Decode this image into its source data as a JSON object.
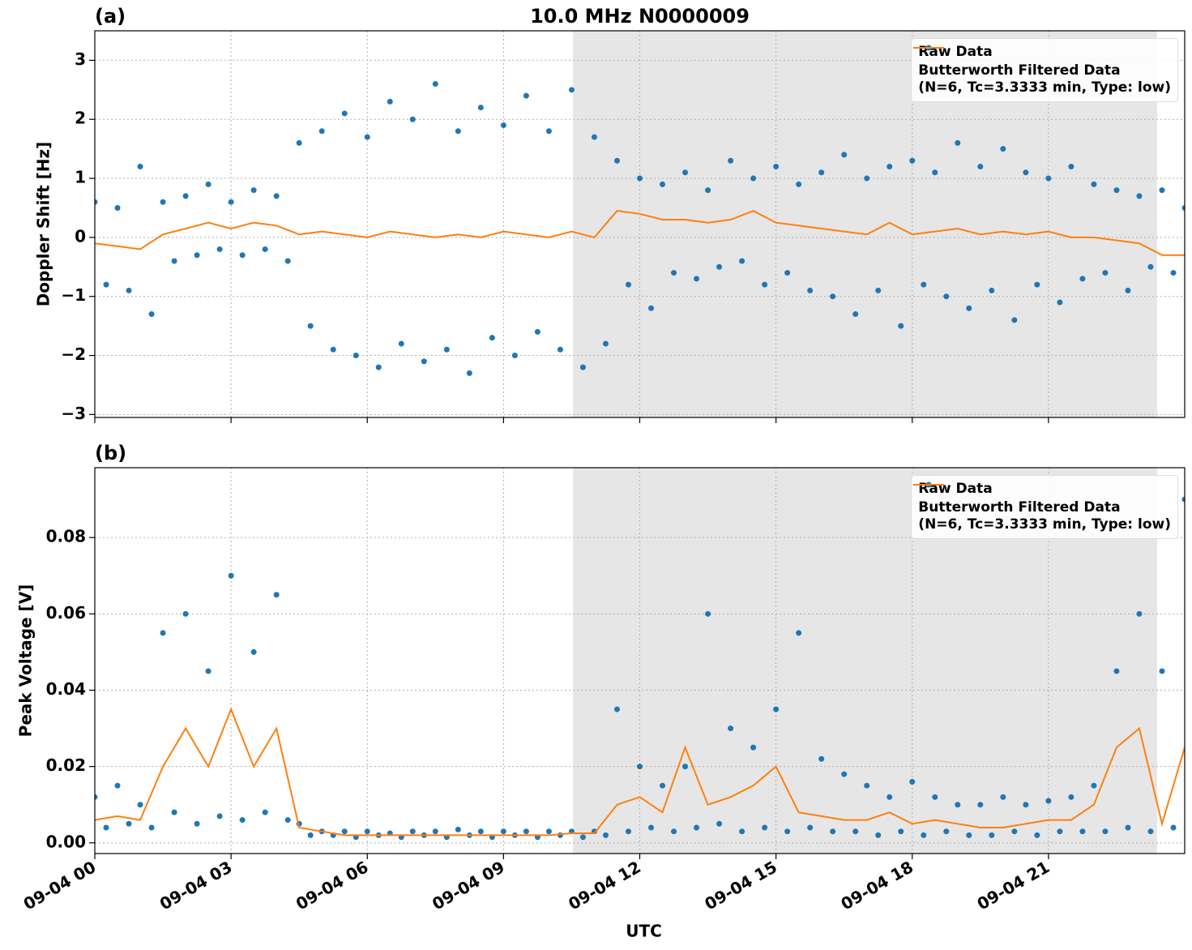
{
  "chart_data": [
    {
      "type": "scatter",
      "panel_label": "(a)",
      "title": "10.0 MHz N0000009",
      "ylabel": "Doppler Shift [Hz]",
      "xlim": [
        0,
        24
      ],
      "ylim": [
        -3.05,
        3.5
      ],
      "xticks": [
        0,
        3,
        6,
        9,
        12,
        15,
        18,
        21
      ],
      "xtick_labels": false,
      "yticks": [
        {
          "value": -3,
          "label": "−3"
        },
        {
          "value": -2,
          "label": "−2"
        },
        {
          "value": -1,
          "label": "−1"
        },
        0,
        1,
        2,
        3
      ],
      "grid": true,
      "shaded_span": [
        10.53,
        23.39
      ],
      "legend": "upper right",
      "series": [
        {
          "name": "Raw Data",
          "type": "scatter",
          "color": "#1f77b4",
          "x": [
            0,
            0.25,
            0.5,
            0.75,
            1,
            1.25,
            1.5,
            1.75,
            2,
            2.25,
            2.5,
            2.75,
            3,
            3.25,
            3.5,
            3.75,
            4,
            4.25,
            4.5,
            4.75,
            5,
            5.25,
            5.5,
            5.75,
            6,
            6.25,
            6.5,
            6.75,
            7,
            7.25,
            7.5,
            7.75,
            8,
            8.25,
            8.5,
            8.75,
            9,
            9.25,
            9.5,
            9.75,
            10,
            10.25,
            10.5,
            10.75,
            11,
            11.25,
            11.5,
            11.75,
            12,
            12.25,
            12.5,
            12.75,
            13,
            13.25,
            13.5,
            13.75,
            14,
            14.25,
            14.5,
            14.75,
            15,
            15.25,
            15.5,
            15.75,
            16,
            16.25,
            16.5,
            16.75,
            17,
            17.25,
            17.5,
            17.75,
            18,
            18.25,
            18.5,
            18.75,
            19,
            19.25,
            19.5,
            19.75,
            20,
            20.25,
            20.5,
            20.75,
            21,
            21.25,
            21.5,
            21.75,
            22,
            22.25,
            22.5,
            22.75,
            23,
            23.25,
            23.5,
            23.75,
            24
          ],
          "values": [
            0.6,
            -0.8,
            0.5,
            -0.9,
            1.2,
            -1.3,
            0.6,
            -0.4,
            0.7,
            -0.3,
            0.9,
            -0.2,
            0.6,
            -0.3,
            0.8,
            -0.2,
            0.7,
            -0.4,
            1.6,
            -1.5,
            1.8,
            -1.9,
            2.1,
            -2.0,
            1.7,
            -2.2,
            2.3,
            -1.8,
            2.0,
            -2.1,
            2.6,
            -1.9,
            1.8,
            -2.3,
            2.2,
            -1.7,
            1.9,
            -2.0,
            2.4,
            -1.6,
            1.8,
            -1.9,
            2.5,
            -2.2,
            1.7,
            -1.8,
            1.3,
            -0.8,
            1.0,
            -1.2,
            0.9,
            -0.6,
            1.1,
            -0.7,
            0.8,
            -0.5,
            1.3,
            -0.4,
            1.0,
            -0.8,
            1.2,
            -0.6,
            0.9,
            -0.9,
            1.1,
            -1.0,
            1.4,
            -1.3,
            1.0,
            -0.9,
            1.2,
            -1.5,
            1.3,
            -0.8,
            1.1,
            -1.0,
            1.6,
            -1.2,
            1.2,
            -0.9,
            1.5,
            -1.4,
            1.1,
            -0.8,
            1.0,
            -1.1,
            1.2,
            -0.7,
            0.9,
            -0.6,
            0.8,
            -0.9,
            0.7,
            -0.5,
            0.8,
            -0.6,
            0.5
          ]
        },
        {
          "name": "Butterworth Filtered Data\n(N=6, Tc=3.3333 min, Type: low)",
          "type": "line",
          "color": "#ff7f0e",
          "x": [
            0,
            0.5,
            1,
            1.5,
            2,
            2.5,
            3,
            3.5,
            4,
            4.5,
            5,
            5.5,
            6,
            6.5,
            7,
            7.5,
            8,
            8.5,
            9,
            9.5,
            10,
            10.5,
            11,
            11.5,
            12,
            12.5,
            13,
            13.5,
            14,
            14.5,
            15,
            15.5,
            16,
            16.5,
            17,
            17.5,
            18,
            18.5,
            19,
            19.5,
            20,
            20.5,
            21,
            21.5,
            22,
            22.5,
            23,
            23.5,
            24
          ],
          "values": [
            -0.1,
            -0.15,
            -0.2,
            0.05,
            0.15,
            0.25,
            0.15,
            0.25,
            0.2,
            0.05,
            0.1,
            0.05,
            0.0,
            0.1,
            0.05,
            0.0,
            0.05,
            0.0,
            0.1,
            0.05,
            0.0,
            0.1,
            0.0,
            0.45,
            0.4,
            0.3,
            0.3,
            0.25,
            0.3,
            0.45,
            0.25,
            0.2,
            0.15,
            0.1,
            0.05,
            0.25,
            0.05,
            0.1,
            0.15,
            0.05,
            0.1,
            0.05,
            0.1,
            0.0,
            0.0,
            -0.05,
            -0.1,
            -0.3,
            -0.3
          ]
        }
      ]
    },
    {
      "type": "scatter",
      "panel_label": "(b)",
      "ylabel": "Peak Voltage [V]",
      "xlabel": "UTC",
      "xlim": [
        0,
        24
      ],
      "ylim": [
        -0.0028,
        0.0983
      ],
      "xticks": [
        {
          "value": 0,
          "label": "09-04 00"
        },
        {
          "value": 3,
          "label": "09-04 03"
        },
        {
          "value": 6,
          "label": "09-04 06"
        },
        {
          "value": 9,
          "label": "09-04 09"
        },
        {
          "value": 12,
          "label": "09-04 12"
        },
        {
          "value": 15,
          "label": "09-04 15"
        },
        {
          "value": 18,
          "label": "09-04 18"
        },
        {
          "value": 21,
          "label": "09-04 21"
        }
      ],
      "xtick_labels": true,
      "yticks": [
        {
          "value": 0,
          "label": "0.00"
        },
        0.02,
        0.04,
        0.06,
        0.08
      ],
      "grid": true,
      "shaded_span": [
        10.53,
        23.39
      ],
      "legend": "upper right",
      "series": [
        {
          "name": "Raw Data",
          "type": "scatter",
          "color": "#1f77b4",
          "x": [
            0,
            0.25,
            0.5,
            0.75,
            1,
            1.25,
            1.5,
            1.75,
            2,
            2.25,
            2.5,
            2.75,
            3,
            3.25,
            3.5,
            3.75,
            4,
            4.25,
            4.5,
            4.75,
            5,
            5.25,
            5.5,
            5.75,
            6,
            6.25,
            6.5,
            6.75,
            7,
            7.25,
            7.5,
            7.75,
            8,
            8.25,
            8.5,
            8.75,
            9,
            9.25,
            9.5,
            9.75,
            10,
            10.25,
            10.5,
            10.75,
            11,
            11.25,
            11.5,
            11.75,
            12,
            12.25,
            12.5,
            12.75,
            13,
            13.25,
            13.5,
            13.75,
            14,
            14.25,
            14.5,
            14.75,
            15,
            15.25,
            15.5,
            15.75,
            16,
            16.25,
            16.5,
            16.75,
            17,
            17.25,
            17.5,
            17.75,
            18,
            18.25,
            18.5,
            18.75,
            19,
            19.25,
            19.5,
            19.75,
            20,
            20.25,
            20.5,
            20.75,
            21,
            21.25,
            21.5,
            21.75,
            22,
            22.25,
            22.5,
            22.75,
            23,
            23.25,
            23.5,
            23.75,
            24
          ],
          "values": [
            0.012,
            0.004,
            0.015,
            0.005,
            0.01,
            0.004,
            0.055,
            0.008,
            0.06,
            0.005,
            0.045,
            0.007,
            0.07,
            0.006,
            0.05,
            0.008,
            0.065,
            0.006,
            0.005,
            0.002,
            0.003,
            0.002,
            0.003,
            0.0015,
            0.003,
            0.002,
            0.0025,
            0.0015,
            0.003,
            0.002,
            0.003,
            0.0015,
            0.0035,
            0.002,
            0.003,
            0.0015,
            0.003,
            0.002,
            0.003,
            0.0015,
            0.003,
            0.002,
            0.003,
            0.0015,
            0.003,
            0.002,
            0.035,
            0.003,
            0.02,
            0.004,
            0.015,
            0.003,
            0.02,
            0.004,
            0.06,
            0.005,
            0.03,
            0.003,
            0.025,
            0.004,
            0.035,
            0.003,
            0.055,
            0.004,
            0.022,
            0.003,
            0.018,
            0.003,
            0.015,
            0.002,
            0.012,
            0.003,
            0.016,
            0.002,
            0.012,
            0.003,
            0.01,
            0.002,
            0.01,
            0.002,
            0.012,
            0.003,
            0.01,
            0.002,
            0.011,
            0.003,
            0.012,
            0.003,
            0.015,
            0.003,
            0.045,
            0.004,
            0.06,
            0.003,
            0.045,
            0.004,
            0.09
          ]
        },
        {
          "name": "Butterworth Filtered Data\n(N=6, Tc=3.3333 min, Type: low)",
          "type": "line",
          "color": "#ff7f0e",
          "x": [
            0,
            0.5,
            1,
            1.5,
            2,
            2.5,
            3,
            3.5,
            4,
            4.5,
            5,
            5.5,
            6,
            6.5,
            7,
            7.5,
            8,
            8.5,
            9,
            9.5,
            10,
            10.5,
            11,
            11.5,
            12,
            12.5,
            13,
            13.5,
            14,
            14.5,
            15,
            15.5,
            16,
            16.5,
            17,
            17.5,
            18,
            18.5,
            19,
            19.5,
            20,
            20.5,
            21,
            21.5,
            22,
            22.5,
            23,
            23.5,
            24
          ],
          "values": [
            0.006,
            0.007,
            0.006,
            0.02,
            0.03,
            0.02,
            0.035,
            0.02,
            0.03,
            0.004,
            0.003,
            0.002,
            0.002,
            0.002,
            0.002,
            0.002,
            0.002,
            0.002,
            0.002,
            0.002,
            0.002,
            0.0025,
            0.0025,
            0.01,
            0.012,
            0.008,
            0.025,
            0.01,
            0.012,
            0.015,
            0.02,
            0.008,
            0.007,
            0.006,
            0.006,
            0.008,
            0.005,
            0.006,
            0.005,
            0.004,
            0.004,
            0.005,
            0.006,
            0.006,
            0.01,
            0.025,
            0.03,
            0.005,
            0.025
          ]
        }
      ]
    }
  ]
}
